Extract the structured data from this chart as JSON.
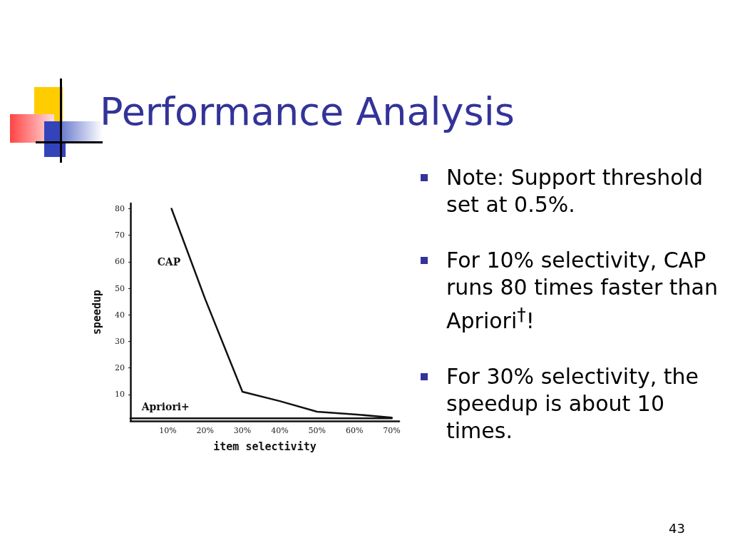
{
  "chart_data": {
    "type": "line",
    "title": "Performance Analysis",
    "xlabel": "item selectivity",
    "ylabel": "speedup",
    "series": [
      {
        "name": "CAP",
        "color": "#111111",
        "x": [
          11,
          20,
          30,
          40,
          50,
          60,
          70
        ],
        "values": [
          80,
          46,
          11,
          7.5,
          3.5,
          2.5,
          1.3
        ]
      },
      {
        "name": "Apriori+",
        "color": "#111111",
        "x": [
          0,
          70
        ],
        "values": [
          1,
          1
        ]
      }
    ],
    "xlim": [
      0,
      72
    ],
    "xticks": [
      {
        "value": 10,
        "label": "10%"
      },
      {
        "value": 20,
        "label": "20%"
      },
      {
        "value": 30,
        "label": "30%"
      },
      {
        "value": 40,
        "label": "40%"
      },
      {
        "value": 50,
        "label": "50%"
      },
      {
        "value": 60,
        "label": "60%"
      },
      {
        "value": 70,
        "label": "70%"
      }
    ],
    "ylim": [
      0,
      82
    ],
    "yticks": [
      10,
      20,
      30,
      40,
      50,
      60,
      70,
      80
    ],
    "grid": false,
    "legend": false,
    "marker": "none",
    "line_style": "solid",
    "annotations": [
      "Note: Support threshold set at 0.5%.",
      "For 10% selectivity, CAP runs 80 times faster than Apriori$^{†}$!",
      "For 30% selectivity, the speedup is about 10 times.",
      "43"
    ]
  }
}
